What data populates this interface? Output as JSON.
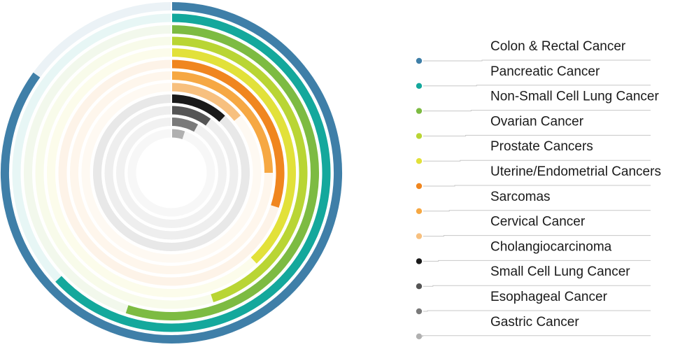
{
  "chart_data": {
    "type": "radial-bar",
    "title": "",
    "categories": [
      "Colon & Rectal Cancer",
      "Pancreatic Cancer",
      "Non-Small Cell Lung Cancer",
      "Ovarian Cancer",
      "Prostate Cancers",
      "Uterine/Endometrial Cancers",
      "Sarcomas",
      "Cervical Cancer",
      "Cholangiocarcinoma",
      "Small Cell Lung Cancer",
      "Esophageal Cancer",
      "Gastric Cancer"
    ],
    "values": [
      0.85,
      0.63,
      0.55,
      0.45,
      0.38,
      0.3,
      0.25,
      0.14,
      0.12,
      0.1,
      0.08,
      0.05
    ],
    "value_unit": "fraction of full circle",
    "colors": [
      "#3f7fa8",
      "#14a89c",
      "#7dbb42",
      "#b9d534",
      "#e2e13a",
      "#f0861f",
      "#f6a843",
      "#f7c07f",
      "#1a1a1a",
      "#555555",
      "#7a7a7a",
      "#b0b0b0"
    ],
    "track_color": "#efefef",
    "legend_position": "right"
  }
}
